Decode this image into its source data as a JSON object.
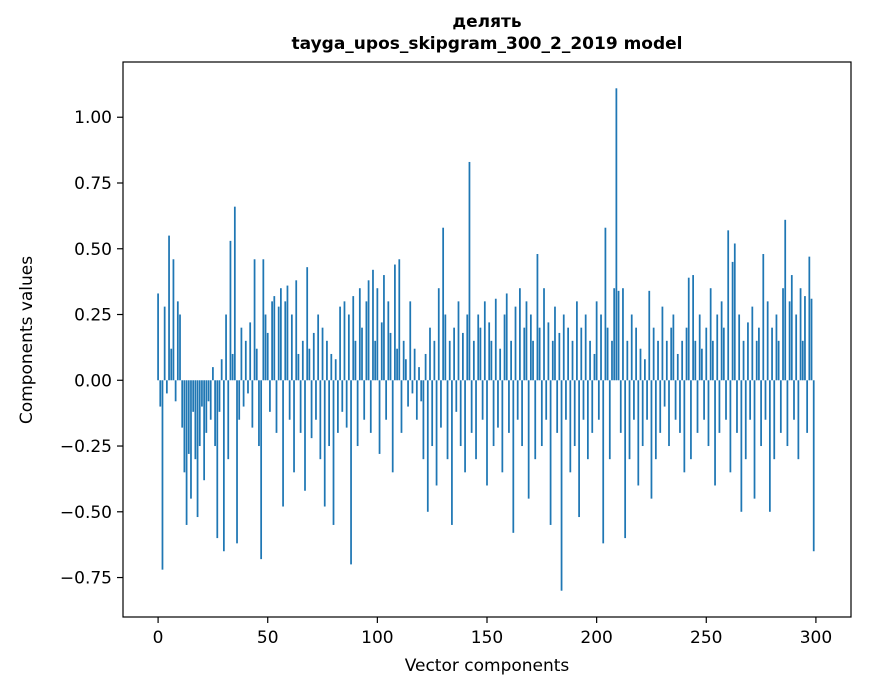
{
  "figure": {
    "background": "#ffffff"
  },
  "chart_data": {
    "type": "bar",
    "title": "делять",
    "subtitle": "tayga_upos_skipgram_300_2_2019 model",
    "xlabel": "Vector components",
    "ylabel": "Components values",
    "bar_color": "#1f77b4",
    "n_components": 300,
    "xlim": [
      -16,
      316
    ],
    "ylim": [
      -0.9,
      1.21
    ],
    "grid": false,
    "legend": "none",
    "x_ticks": {
      "values": [
        0,
        50,
        100,
        150,
        200,
        250,
        300
      ],
      "labels": [
        "0",
        "50",
        "100",
        "150",
        "200",
        "250",
        "300"
      ]
    },
    "y_ticks": {
      "values": [
        1.0,
        0.75,
        0.5,
        0.25,
        0.0,
        -0.25,
        -0.5,
        -0.75
      ],
      "labels": [
        "1.00",
        "0.75",
        "0.50",
        "0.25",
        "0.00",
        "−0.25",
        "−0.50",
        "−0.75"
      ]
    },
    "values": [
      0.33,
      -0.1,
      -0.72,
      0.28,
      -0.05,
      0.55,
      0.12,
      0.46,
      -0.08,
      0.3,
      0.25,
      -0.18,
      -0.35,
      -0.55,
      -0.28,
      -0.45,
      -0.12,
      -0.3,
      -0.52,
      -0.25,
      -0.1,
      -0.38,
      -0.2,
      -0.08,
      -0.15,
      0.05,
      -0.25,
      -0.6,
      -0.12,
      0.08,
      -0.65,
      0.25,
      -0.3,
      0.53,
      0.1,
      0.66,
      -0.62,
      -0.15,
      0.2,
      -0.1,
      0.15,
      -0.05,
      0.22,
      -0.18,
      0.46,
      0.12,
      -0.25,
      -0.68,
      0.46,
      0.25,
      0.18,
      -0.12,
      0.3,
      0.32,
      -0.2,
      0.28,
      0.35,
      -0.48,
      0.3,
      0.36,
      -0.15,
      0.25,
      -0.35,
      0.38,
      0.1,
      -0.2,
      0.15,
      -0.42,
      0.43,
      0.12,
      -0.22,
      0.18,
      -0.15,
      0.25,
      -0.3,
      0.2,
      -0.48,
      0.15,
      -0.25,
      0.1,
      -0.55,
      0.08,
      -0.2,
      0.28,
      -0.12,
      0.3,
      -0.18,
      0.25,
      -0.7,
      0.32,
      0.15,
      -0.25,
      0.35,
      0.2,
      -0.15,
      0.3,
      0.38,
      -0.2,
      0.42,
      0.15,
      0.35,
      -0.28,
      0.22,
      0.4,
      -0.15,
      0.3,
      0.18,
      -0.35,
      0.44,
      0.12,
      0.46,
      -0.2,
      0.15,
      0.08,
      -0.1,
      0.3,
      -0.05,
      0.12,
      -0.15,
      0.05,
      -0.08,
      -0.3,
      0.1,
      -0.5,
      0.2,
      -0.25,
      0.15,
      -0.4,
      0.35,
      -0.18,
      0.58,
      0.25,
      -0.3,
      0.15,
      -0.55,
      0.2,
      -0.12,
      0.3,
      -0.25,
      0.18,
      -0.35,
      0.25,
      0.83,
      -0.2,
      0.15,
      -0.3,
      0.25,
      0.2,
      -0.15,
      0.3,
      -0.4,
      0.22,
      0.15,
      -0.25,
      0.31,
      -0.18,
      0.12,
      -0.35,
      0.25,
      0.33,
      -0.2,
      0.15,
      -0.58,
      0.28,
      -0.15,
      0.35,
      -0.25,
      0.2,
      0.3,
      -0.45,
      0.25,
      0.15,
      -0.3,
      0.48,
      0.2,
      -0.25,
      0.35,
      -0.15,
      0.22,
      -0.55,
      0.15,
      0.28,
      -0.2,
      0.18,
      -0.8,
      0.25,
      -0.15,
      0.2,
      -0.35,
      0.15,
      -0.25,
      0.3,
      -0.52,
      0.2,
      -0.15,
      0.25,
      -0.3,
      0.15,
      -0.2,
      0.1,
      0.3,
      -0.15,
      0.25,
      -0.62,
      0.58,
      0.2,
      -0.3,
      0.15,
      0.35,
      1.11,
      0.34,
      -0.2,
      0.35,
      -0.6,
      0.15,
      -0.3,
      0.25,
      -0.15,
      0.2,
      -0.4,
      0.12,
      -0.25,
      0.08,
      -0.15,
      0.34,
      -0.45,
      0.2,
      -0.3,
      0.15,
      -0.2,
      0.28,
      -0.1,
      0.15,
      -0.25,
      0.2,
      0.25,
      -0.15,
      0.1,
      -0.2,
      0.15,
      -0.35,
      0.2,
      0.39,
      -0.3,
      0.4,
      0.15,
      -0.2,
      0.25,
      0.12,
      -0.15,
      0.2,
      -0.25,
      0.35,
      0.15,
      -0.4,
      0.25,
      -0.2,
      0.3,
      0.2,
      -0.15,
      0.57,
      -0.35,
      0.45,
      0.52,
      -0.2,
      0.25,
      -0.5,
      0.15,
      -0.3,
      0.22,
      -0.15,
      0.28,
      -0.45,
      0.15,
      0.2,
      -0.25,
      0.48,
      -0.15,
      0.3,
      -0.5,
      0.2,
      -0.3,
      0.25,
      0.15,
      -0.2,
      0.35,
      0.61,
      -0.25,
      0.3,
      0.4,
      -0.15,
      0.25,
      -0.3,
      0.35,
      0.15,
      0.32,
      -0.2,
      0.47,
      0.31,
      -0.65
    ]
  }
}
